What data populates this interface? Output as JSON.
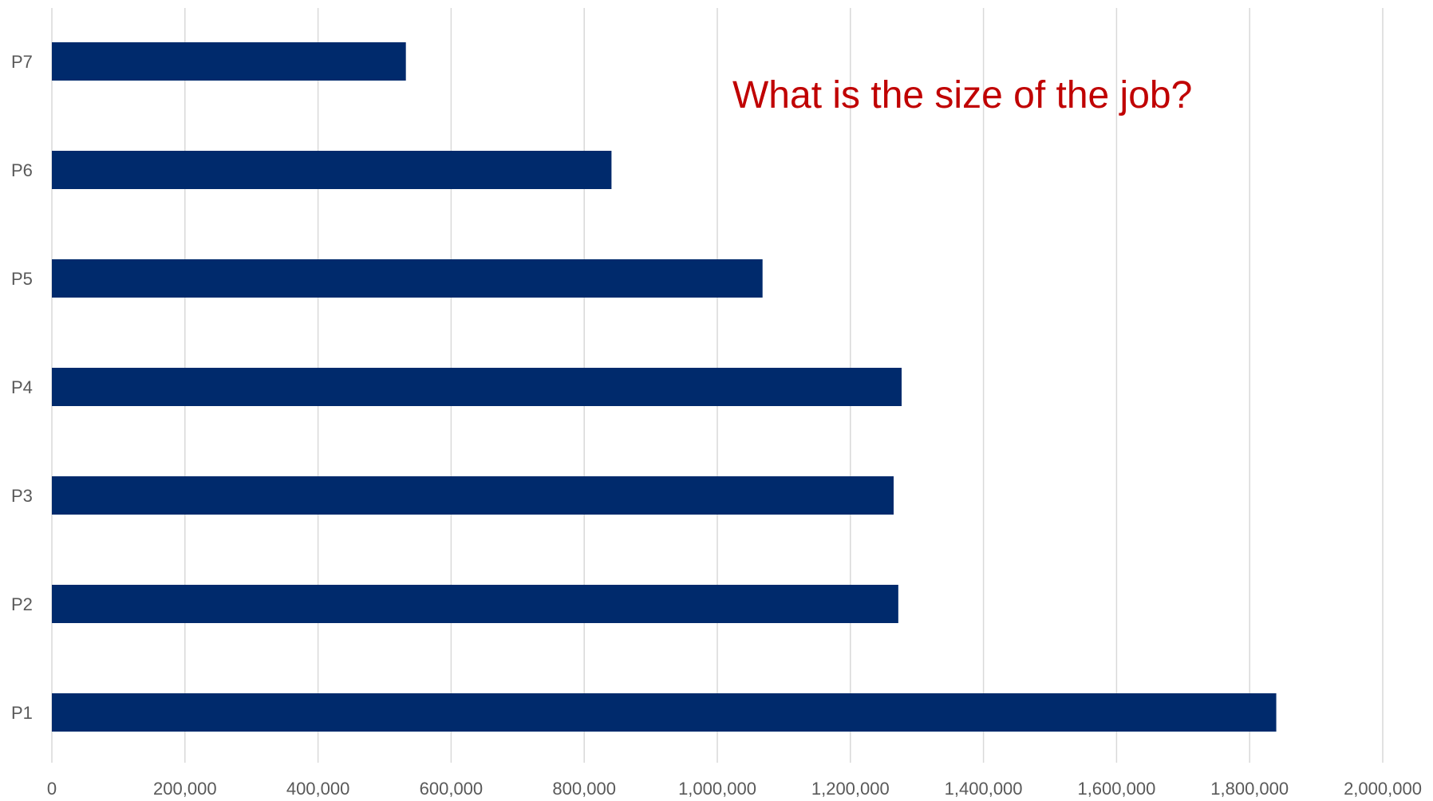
{
  "chart_data": {
    "type": "bar",
    "orientation": "horizontal",
    "categories": [
      "P1",
      "P2",
      "P3",
      "P4",
      "P5",
      "P6",
      "P7"
    ],
    "values": [
      1840000,
      1272000,
      1265000,
      1277000,
      1068000,
      841000,
      532000
    ],
    "xlim": [
      0,
      2000000
    ],
    "xticks": [
      0,
      200000,
      400000,
      600000,
      800000,
      1000000,
      1200000,
      1400000,
      1600000,
      1800000,
      2000000
    ],
    "xtick_labels": [
      "0",
      "200,000",
      "400,000",
      "600,000",
      "800,000",
      "1,000,000",
      "1,200,000",
      "1,400,000",
      "1,600,000",
      "1,800,000",
      "2,000,000"
    ],
    "annotation": "What is the size of the job?",
    "grid": "vertical",
    "legend": "none",
    "colors": {
      "bar": "#002a6c",
      "annotation": "#c00000",
      "grid": "#d9d9d9",
      "axis_text": "#595959"
    }
  }
}
